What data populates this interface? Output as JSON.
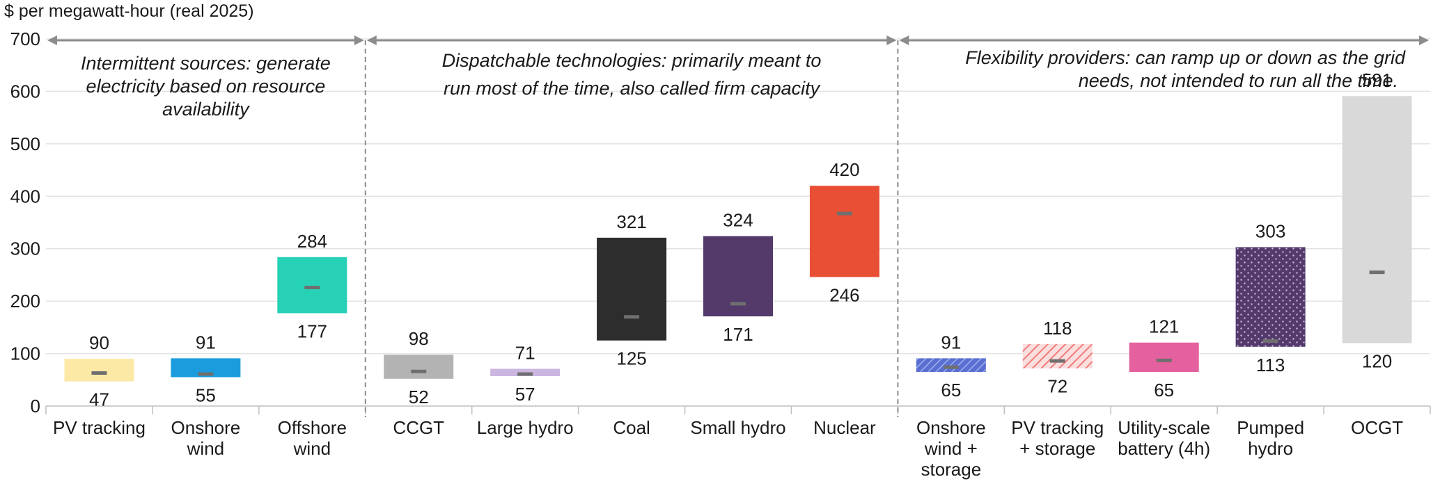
{
  "chart_data": {
    "type": "floating-bar",
    "ylabel": "$ per megawatt-hour (real 2025)",
    "ylim": [
      0,
      700
    ],
    "yticks": [
      0,
      100,
      200,
      300,
      400,
      500,
      600,
      700
    ],
    "grid": true,
    "groups": [
      {
        "lines": [
          "Intermittent sources: generate",
          "electricity based on resource",
          "availability"
        ],
        "first": 0,
        "last": 2
      },
      {
        "lines": [
          "Dispatchable technologies: primarily meant to",
          "run most of the time, also called firm capacity"
        ],
        "first": 3,
        "last": 7
      },
      {
        "lines": [
          "Flexibility providers: can ramp up or down as the grid",
          "needs, not intended to run all the time."
        ],
        "first": 8,
        "last": 12
      }
    ],
    "bars": [
      {
        "label": [
          "PV tracking"
        ],
        "low": 47,
        "high": 90,
        "mid": 63,
        "color": "#fde9a6",
        "pattern": ""
      },
      {
        "label": [
          "Onshore",
          "wind"
        ],
        "low": 55,
        "high": 91,
        "mid": 61,
        "color": "#1b9ddd",
        "pattern": ""
      },
      {
        "label": [
          "Offshore",
          "wind"
        ],
        "low": 177,
        "high": 284,
        "mid": 226,
        "color": "#27d1b6",
        "pattern": ""
      },
      {
        "label": [
          "CCGT"
        ],
        "low": 52,
        "high": 98,
        "mid": 66,
        "color": "#b3b3b3",
        "pattern": ""
      },
      {
        "label": [
          "Large hydro"
        ],
        "low": 57,
        "high": 71,
        "mid": 61,
        "color": "#cbb6e0",
        "pattern": ""
      },
      {
        "label": [
          "Coal"
        ],
        "low": 125,
        "high": 321,
        "mid": 170,
        "color": "#2d2d2d",
        "pattern": ""
      },
      {
        "label": [
          "Small hydro"
        ],
        "low": 171,
        "high": 324,
        "mid": 195,
        "color": "#533a6b",
        "pattern": ""
      },
      {
        "label": [
          "Nuclear"
        ],
        "low": 246,
        "high": 420,
        "mid": 367,
        "color": "#e84f35",
        "pattern": ""
      },
      {
        "label": [
          "Onshore",
          "wind +",
          "storage"
        ],
        "low": 65,
        "high": 91,
        "mid": 74,
        "color": "#1b9ddd",
        "pattern": "hatch-blue"
      },
      {
        "label": [
          "PV tracking",
          "+ storage"
        ],
        "low": 72,
        "high": 118,
        "mid": 86,
        "color": "#ef7c7c",
        "pattern": "hatch-red"
      },
      {
        "label": [
          "Utility-scale",
          "battery (4h)"
        ],
        "low": 65,
        "high": 121,
        "mid": 87,
        "color": "#e5609f",
        "pattern": ""
      },
      {
        "label": [
          "Pumped",
          "hydro"
        ],
        "low": 113,
        "high": 303,
        "mid": 124,
        "color": "#533a6b",
        "pattern": "dots"
      },
      {
        "label": [
          "OCGT"
        ],
        "low": 120,
        "high": 591,
        "mid": 255,
        "color": "#d9d9d9",
        "pattern": ""
      }
    ]
  }
}
